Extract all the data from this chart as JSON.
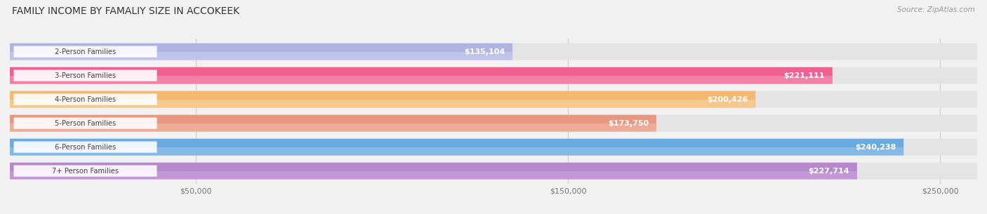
{
  "title": "FAMILY INCOME BY FAMALIY SIZE IN ACCOKEEK",
  "source": "Source: ZipAtlas.com",
  "categories": [
    "2-Person Families",
    "3-Person Families",
    "4-Person Families",
    "5-Person Families",
    "6-Person Families",
    "7+ Person Families"
  ],
  "values": [
    135104,
    221111,
    200426,
    173750,
    240238,
    227714
  ],
  "labels": [
    "$135,104",
    "$221,111",
    "$200,426",
    "$173,750",
    "$240,238",
    "$227,714"
  ],
  "bar_colors": [
    "#b0b4e0",
    "#f06090",
    "#f5b870",
    "#e89880",
    "#6aaade",
    "#b888cc"
  ],
  "bar_colors_light": [
    "#d0d4f0",
    "#f8a0c0",
    "#fad8a8",
    "#f4c0b0",
    "#a0c8ee",
    "#d0a8e0"
  ],
  "max_value": 260000,
  "xtick_vals": [
    50000,
    150000,
    250000
  ],
  "xtick_labels": [
    "$50,000",
    "$150,000",
    "$250,000"
  ],
  "background_color": "#f2f2f2",
  "bar_bg_color": "#e4e4e4",
  "title_fontsize": 10,
  "label_fontsize": 8,
  "tick_fontsize": 8,
  "source_fontsize": 7.5
}
